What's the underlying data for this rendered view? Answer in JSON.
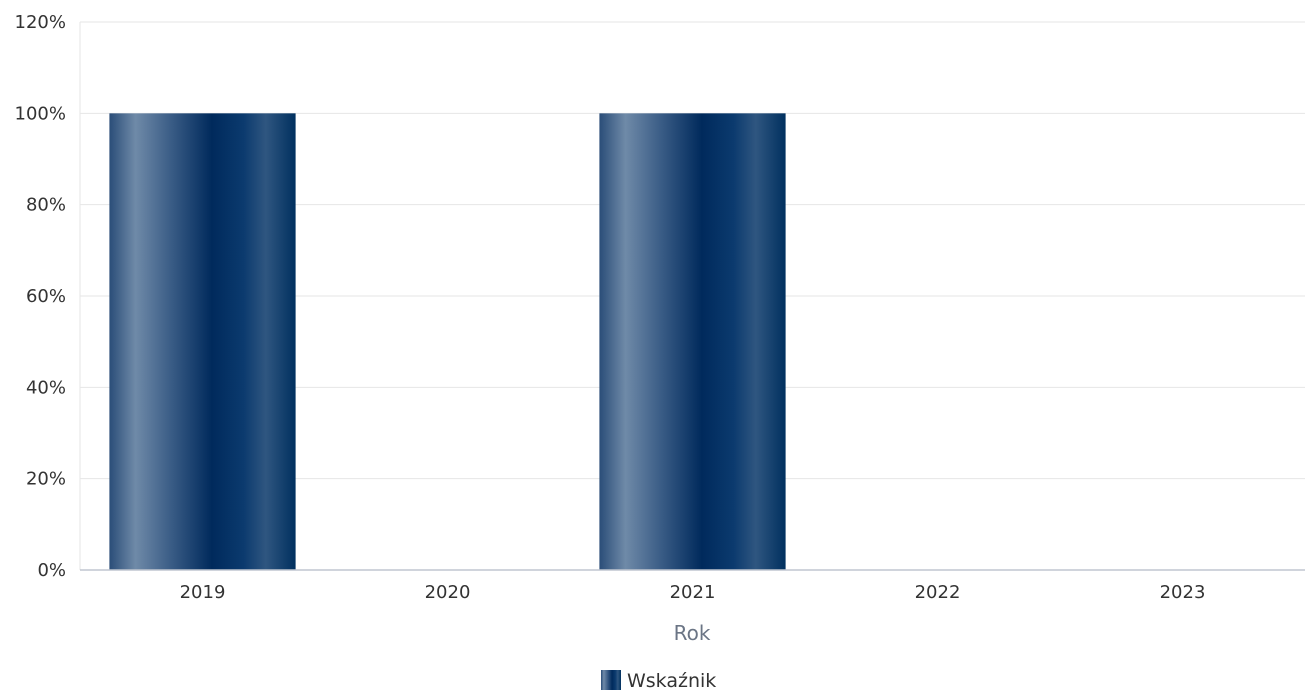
{
  "chart_data": {
    "type": "bar",
    "categories": [
      "2019",
      "2020",
      "2021",
      "2022",
      "2023"
    ],
    "series": [
      {
        "name": "Wskaźnik",
        "values": [
          100,
          0,
          100,
          0,
          0
        ]
      }
    ],
    "xlabel": "Rok",
    "ylabel": "",
    "ylim": [
      0,
      120
    ],
    "yticks": [
      "0%",
      "20%",
      "40%",
      "60%",
      "80%",
      "100%",
      "120%"
    ],
    "grid": true,
    "legend": "bottom-center",
    "colors": {
      "bar_dark": "#002a5c",
      "bar_light": "#6f8aa8",
      "grid": "#e6e6e6",
      "axis": "#c0c6d0"
    }
  }
}
